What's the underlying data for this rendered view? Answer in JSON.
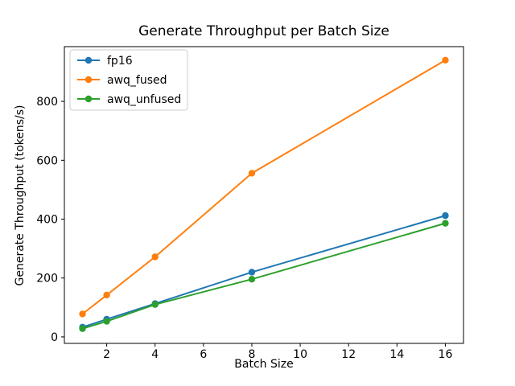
{
  "chart_data": {
    "type": "line",
    "title": "Generate Throughput per Batch Size",
    "xlabel": "Batch Size",
    "ylabel": "Generate Throughput (tokens/s)",
    "x": [
      1,
      2,
      4,
      8,
      16
    ],
    "series": [
      {
        "name": "fp16",
        "color": "#1f77b4",
        "values": [
          33,
          60,
          113,
          220,
          412
        ]
      },
      {
        "name": "awq_fused",
        "color": "#ff7f0e",
        "values": [
          78,
          142,
          272,
          556,
          940
        ]
      },
      {
        "name": "awq_unfused",
        "color": "#2ca02c",
        "values": [
          28,
          53,
          110,
          196,
          386
        ]
      }
    ],
    "xticks": [
      2,
      4,
      6,
      8,
      10,
      12,
      14,
      16
    ],
    "yticks": [
      0,
      200,
      400,
      600,
      800
    ],
    "xlim": [
      0.25,
      16.75
    ],
    "ylim": [
      -22,
      986
    ],
    "grid": false,
    "marker": "o",
    "legend_position": "upper left",
    "axis_color": "#000000",
    "legend_border_color": "#cccccc",
    "background_color": "#ffffff"
  }
}
